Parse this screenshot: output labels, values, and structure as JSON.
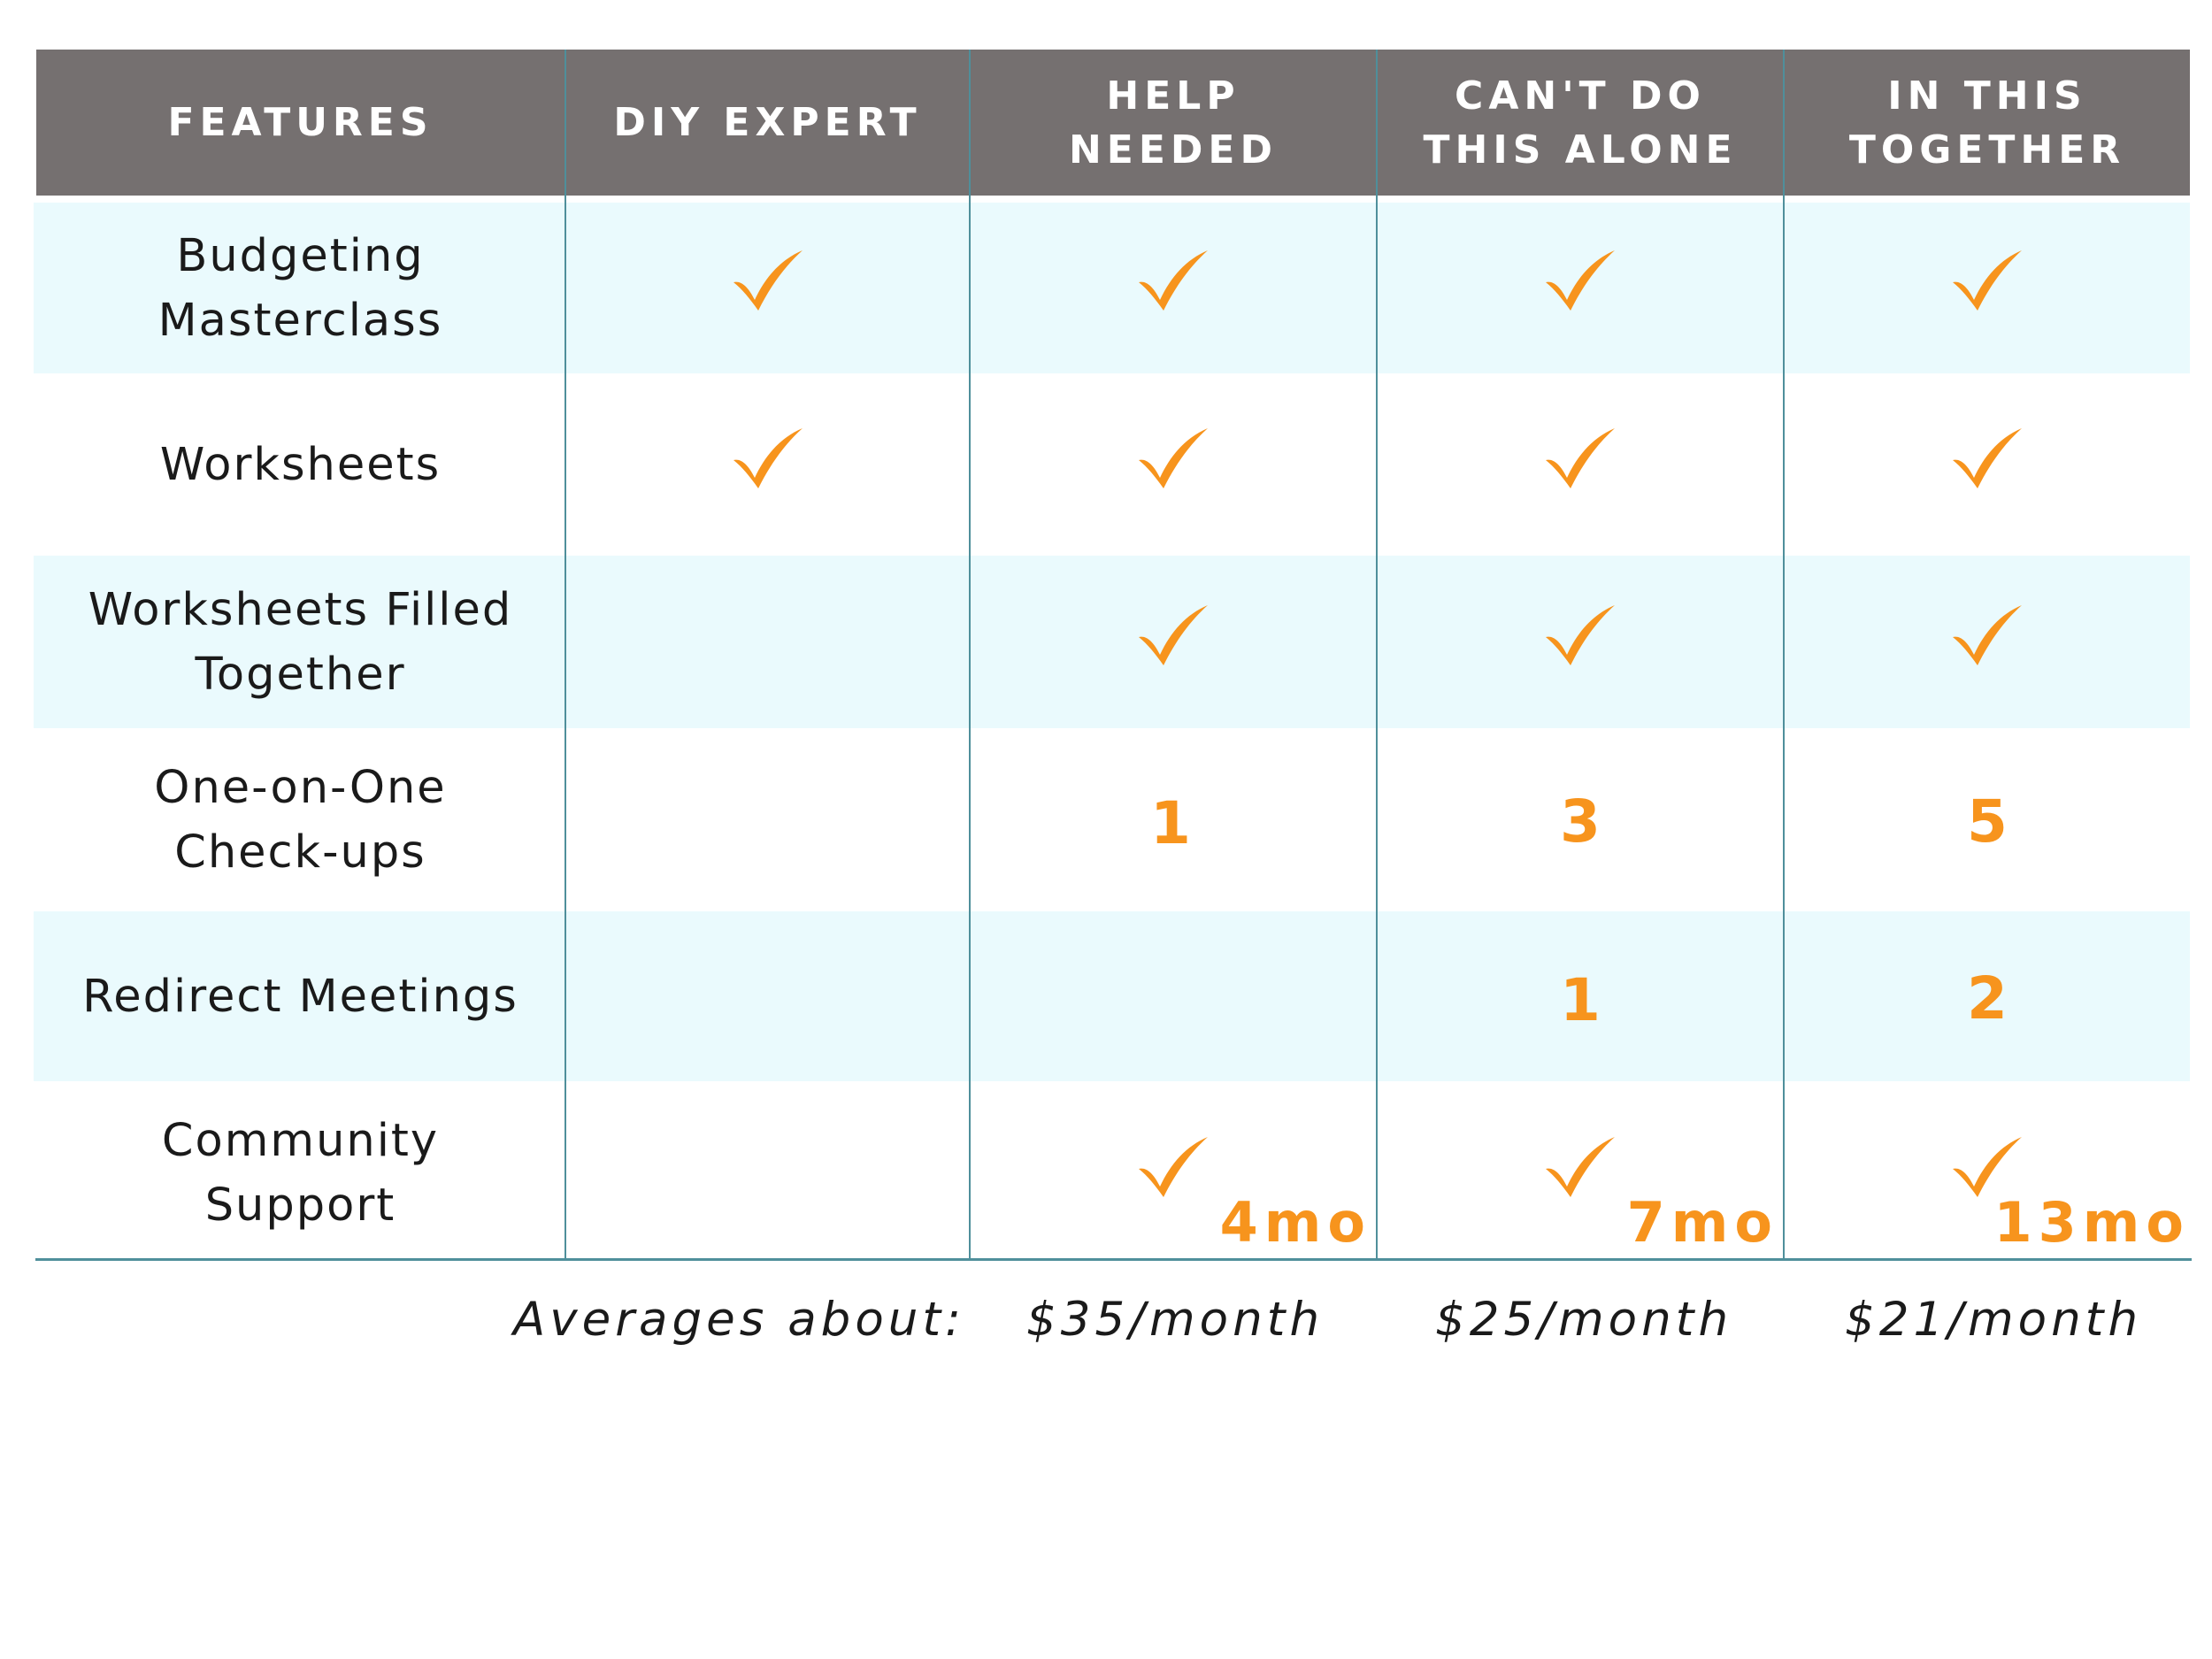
{
  "colors": {
    "header_bg": "#757070",
    "band_bg": "#eafafd",
    "grid_line": "#4f8f9b",
    "accent": "#f7941d",
    "text": "#1a1a1a"
  },
  "header": {
    "features": "FEATURES",
    "diy_expert": "DIY EXPERT",
    "help_needed": "HELP\nNEEDED",
    "cant_do_alone": "CAN'T DO\nTHIS ALONE",
    "in_this_together": "IN THIS\nTOGETHER"
  },
  "rows": {
    "budgeting": {
      "label": "Budgeting\nMasterclass",
      "diy": "check-icon",
      "help": "check-icon",
      "cant": "check-icon",
      "together": "check-icon"
    },
    "worksheets": {
      "label": "Worksheets",
      "diy": "check-icon",
      "help": "check-icon",
      "cant": "check-icon",
      "together": "check-icon"
    },
    "worksheets_filled": {
      "label": "Worksheets Filled\nTogether",
      "help": "check-icon",
      "cant": "check-icon",
      "together": "check-icon"
    },
    "checkups": {
      "label": "One-on-One\nCheck-ups",
      "help": "1",
      "cant": "3",
      "together": "5"
    },
    "redirect": {
      "label": "Redirect Meetings",
      "cant": "1",
      "together": "2"
    },
    "community": {
      "label": "Community\nSupport",
      "help": "check-icon",
      "help_duration": "4mo",
      "cant": "check-icon",
      "cant_duration": "7mo",
      "together": "check-icon",
      "together_duration": "13mo"
    }
  },
  "footer": {
    "label": "Averages about:",
    "help_price": "$35/month",
    "cant_price": "$25/month",
    "together_price": "$21/month"
  }
}
